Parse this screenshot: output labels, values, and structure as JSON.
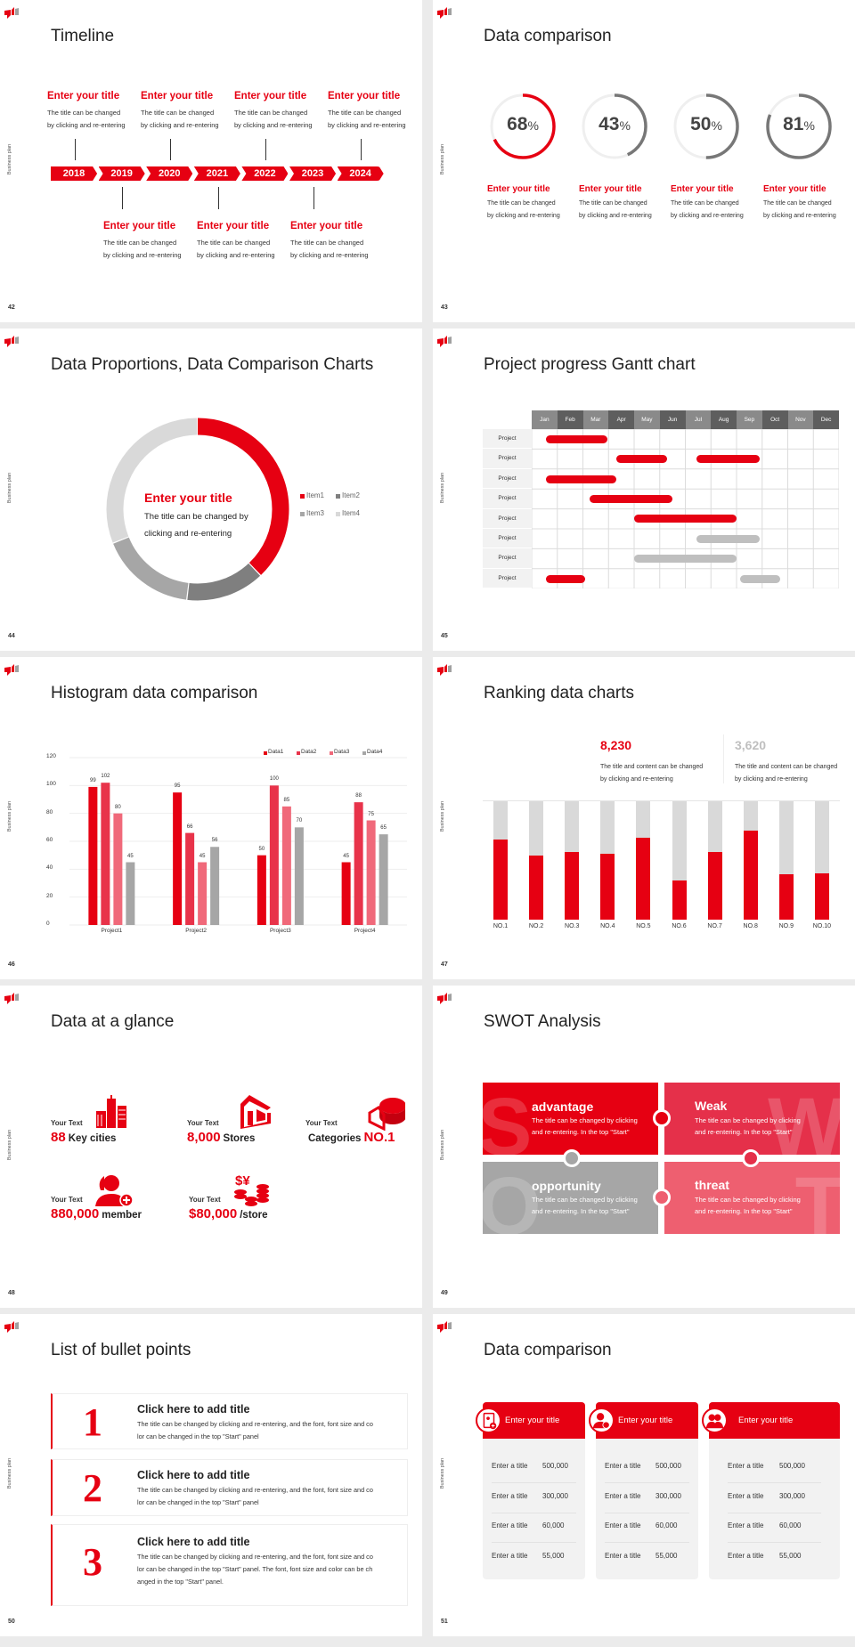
{
  "side_label": "Business plan",
  "colors": {
    "accent": "#e60012",
    "accent2": "#e8334a",
    "accent3": "#f0697a",
    "gray": "#a6a6a6",
    "light_gray": "#d9d9d9"
  },
  "slides": [
    {
      "page": "42",
      "title": "Timeline"
    },
    {
      "page": "43",
      "title": "Data comparison"
    },
    {
      "page": "44",
      "title": "Data Proportions, Data Comparison Charts"
    },
    {
      "page": "45",
      "title": "Project progress Gantt chart"
    },
    {
      "page": "46",
      "title": "Histogram data comparison"
    },
    {
      "page": "47",
      "title": "Ranking data charts"
    },
    {
      "page": "48",
      "title": "Data at a glance"
    },
    {
      "page": "49",
      "title": "SWOT Analysis"
    },
    {
      "page": "50",
      "title": "List of bullet points"
    },
    {
      "page": "51",
      "title": "Data comparison"
    }
  ],
  "timeline": {
    "years": [
      "2018",
      "2019",
      "2020",
      "2021",
      "2022",
      "2023",
      "2024"
    ],
    "top": [
      {
        "year": "2018",
        "title": "Enter your title",
        "lines": [
          "The title can be changed",
          "by clicking and re-entering"
        ]
      },
      {
        "year": "2020",
        "title": "Enter your title",
        "lines": [
          "The title can be changed",
          "by clicking and re-entering"
        ]
      },
      {
        "year": "2022",
        "title": "Enter your title",
        "lines": [
          "The title can be changed",
          "by clicking and re-entering"
        ]
      },
      {
        "year": "2024",
        "title": "Enter your title",
        "lines": [
          "The title can be changed",
          "by clicking and re-entering"
        ]
      }
    ],
    "bottom": [
      {
        "year": "2019",
        "title": "Enter your title",
        "lines": [
          "The title can be changed",
          "by clicking and re-entering"
        ]
      },
      {
        "year": "2021",
        "title": "Enter your title",
        "lines": [
          "The title can be changed",
          "by clicking and re-entering"
        ]
      },
      {
        "year": "2023",
        "title": "Enter your title",
        "lines": [
          "The title can be changed",
          "by clicking and re-entering"
        ]
      }
    ]
  },
  "circles": [
    {
      "percent": 68,
      "label": "68",
      "unit": "%",
      "color": "#e60012",
      "title": "Enter your title",
      "lines": [
        "The title can be changed",
        "by clicking and re-entering"
      ]
    },
    {
      "percent": 43,
      "label": "43",
      "unit": "%",
      "color": "#777777",
      "title": "Enter your title",
      "lines": [
        "The title can be changed",
        "by clicking and re-entering"
      ]
    },
    {
      "percent": 50,
      "label": "50",
      "unit": "%",
      "color": "#777777",
      "title": "Enter your title",
      "lines": [
        "The title can be changed",
        "by clicking and re-entering"
      ]
    },
    {
      "percent": 81,
      "label": "81",
      "unit": "%",
      "color": "#777777",
      "title": "Enter your title",
      "lines": [
        "The title can be changed",
        "by clicking and re-entering"
      ]
    }
  ],
  "proportions": {
    "title": "Enter your title",
    "lines": [
      "The title can be changed by",
      "clicking and re-entering"
    ]
  },
  "ranking": {
    "stats": [
      {
        "value": "8,230",
        "color": "#e60012",
        "lines": [
          "The title and content can be changed",
          "by clicking and re-entering"
        ]
      },
      {
        "value": "3,620",
        "color": "#bfbfbf",
        "lines": [
          "The title and content can be changed",
          "by clicking and re-entering"
        ]
      }
    ]
  },
  "glance": {
    "items": [
      {
        "small": "Your Text",
        "big": "88",
        "text": "Key cities",
        "big_first": true,
        "icon": "city-buildings-icon"
      },
      {
        "small": "Your Text",
        "big": "8,000",
        "text": "Stores",
        "big_first": true,
        "icon": "store-icon"
      },
      {
        "small": "Your Text",
        "big": "NO.1",
        "text": "Categories",
        "big_first": false,
        "icon": "pie-chart-3d-icon"
      },
      {
        "small": "Your Text",
        "big": "880,000",
        "text": "member",
        "big_first": true,
        "icon": "add-member-icon"
      },
      {
        "small": "Your Text",
        "big": "$80,000",
        "text": "/store",
        "big_first": true,
        "icon": "coins-icon"
      }
    ]
  },
  "swot": [
    {
      "letter": "S",
      "title": "advantage",
      "color": "#e60012",
      "lines": [
        "The title can be changed by clicking",
        "and re-entering. In the top \"Start\""
      ]
    },
    {
      "letter": "W",
      "title": "Weak",
      "color": "#e5304a",
      "lines": [
        "The title can be changed by clicking",
        "and re-entering. In the top \"Start\""
      ]
    },
    {
      "letter": "O",
      "title": "opportunity",
      "color": "#a6a6a6",
      "lines": [
        "The title can be changed by clicking",
        "and re-entering. In the top \"Start\""
      ]
    },
    {
      "letter": "T",
      "title": "threat",
      "color": "#ee5f70",
      "lines": [
        "The title can be changed by clicking",
        "and re-entering. In the top \"Start\""
      ]
    }
  ],
  "bullets": [
    {
      "number": "1",
      "title": "Click here to add title",
      "lines": [
        "The title can be changed by clicking and re-entering, and the font, font size and co",
        "lor can be changed in the top \"Start\" panel"
      ]
    },
    {
      "number": "2",
      "title": "Click here to add title",
      "lines": [
        "The title can be changed by clicking and re-entering, and the font, font size and co",
        "lor can be changed in the top \"Start\" panel"
      ]
    },
    {
      "number": "3",
      "title": "Click here to add title",
      "lines": [
        "The title can be changed by clicking and re-entering, and the font, font size and co",
        "lor can be changed in the top \"Start\" panel. The font, font size and color can be ch",
        "anged in the top \"Start\" panel."
      ]
    }
  ],
  "cards": [
    {
      "title": "Enter your title",
      "icon": "tablet-user-icon",
      "rows": [
        {
          "label": "Enter a title",
          "value": "500,000"
        },
        {
          "label": "Enter a title",
          "value": "300,000"
        },
        {
          "label": "Enter a title",
          "value": "60,000"
        },
        {
          "label": "Enter a title",
          "value": "55,000"
        }
      ]
    },
    {
      "title": "Enter your title",
      "icon": "user-shield-icon",
      "rows": [
        {
          "label": "Enter a title",
          "value": "500,000"
        },
        {
          "label": "Enter a title",
          "value": "300,000"
        },
        {
          "label": "Enter a title",
          "value": "60,000"
        },
        {
          "label": "Enter a title",
          "value": "55,000"
        }
      ]
    },
    {
      "title": "Enter your title",
      "icon": "user-group-icon",
      "rows": [
        {
          "label": "Enter a title",
          "value": "500,000"
        },
        {
          "label": "Enter a title",
          "value": "300,000"
        },
        {
          "label": "Enter a title",
          "value": "60,000"
        },
        {
          "label": "Enter a title",
          "value": "55,000"
        }
      ]
    }
  ],
  "chart_data": [
    {
      "type": "pie",
      "donut": true,
      "categories": [
        "Item1",
        "Item2",
        "Item3",
        "Item4"
      ],
      "values": [
        38,
        14,
        17,
        31
      ],
      "colors": [
        "#e60012",
        "#7f7f7f",
        "#a6a6a6",
        "#d9d9d9"
      ],
      "legend": "right"
    },
    {
      "type": "gantt",
      "months": [
        "Jan",
        "Feb",
        "Mar",
        "Apr",
        "May",
        "Jun",
        "Jul",
        "Aug",
        "Sep",
        "Oct",
        "Nov",
        "Dec"
      ],
      "rows": [
        {
          "label": "Project",
          "bars": [
            {
              "start": 0.55,
              "end": 2.95,
              "color": "#e60012"
            }
          ]
        },
        {
          "label": "Project",
          "bars": [
            {
              "start": 3.3,
              "end": 5.3,
              "color": "#e60012"
            },
            {
              "start": 6.45,
              "end": 8.9,
              "color": "#e60012"
            }
          ]
        },
        {
          "label": "Project",
          "bars": [
            {
              "start": 0.55,
              "end": 3.3,
              "color": "#e60012"
            }
          ]
        },
        {
          "label": "Project",
          "bars": [
            {
              "start": 2.25,
              "end": 5.5,
              "color": "#e60012"
            }
          ]
        },
        {
          "label": "Project",
          "bars": [
            {
              "start": 4.0,
              "end": 8.0,
              "color": "#e60012"
            }
          ]
        },
        {
          "label": "Project",
          "bars": [
            {
              "start": 6.45,
              "end": 8.9,
              "color": "#bfbfbf"
            }
          ]
        },
        {
          "label": "Project",
          "bars": [
            {
              "start": 4.0,
              "end": 8.0,
              "color": "#bfbfbf"
            }
          ]
        },
        {
          "label": "Project",
          "bars": [
            {
              "start": 0.55,
              "end": 2.1,
              "color": "#e60012"
            },
            {
              "start": 8.15,
              "end": 9.7,
              "color": "#bfbfbf"
            }
          ]
        }
      ]
    },
    {
      "type": "bar",
      "categories": [
        "Project1",
        "Project2",
        "Project3",
        "Project4"
      ],
      "series": [
        {
          "name": "Data1",
          "values": [
            99,
            95,
            50,
            45
          ],
          "color": "#e60012"
        },
        {
          "name": "Data2",
          "values": [
            102,
            66,
            100,
            88
          ],
          "color": "#e8334a"
        },
        {
          "name": "Data3",
          "values": [
            80,
            45,
            85,
            75
          ],
          "color": "#f0697a"
        },
        {
          "name": "Data4",
          "values": [
            45,
            56,
            70,
            65
          ],
          "color": "#a6a6a6"
        }
      ],
      "yticks": [
        "0",
        "20",
        "40",
        "60",
        "80",
        "100",
        "120"
      ],
      "ylim": [
        0,
        120
      ],
      "grid": true,
      "legend": "top-right"
    },
    {
      "type": "bar",
      "stacked": true,
      "categories": [
        "NO.1",
        "NO.2",
        "NO.3",
        "NO.4",
        "NO.5",
        "NO.6",
        "NO.7",
        "NO.8",
        "NO.9",
        "NO.10"
      ],
      "values": [
        0.68,
        0.54,
        0.57,
        0.56,
        0.69,
        0.33,
        0.57,
        0.75,
        0.38,
        0.39
      ],
      "ylim": [
        0,
        1
      ],
      "colors": [
        "#e60012",
        "#d9d9d9"
      ]
    }
  ]
}
